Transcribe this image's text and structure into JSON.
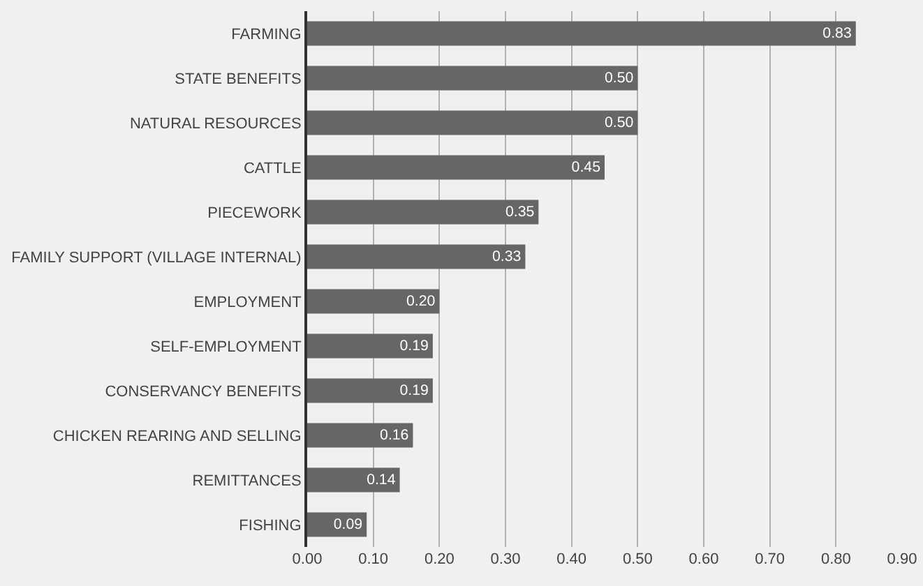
{
  "chart_data": {
    "type": "bar",
    "orientation": "horizontal",
    "categories": [
      "FARMING",
      "STATE BENEFITS",
      "NATURAL RESOURCES",
      "CATTLE",
      "PIECEWORK",
      "FAMILY SUPPORT (VILLAGE INTERNAL)",
      "EMPLOYMENT",
      "SELF-EMPLOYMENT",
      "CONSERVANCY BENEFITS",
      "CHICKEN REARING AND SELLING",
      "REMITTANCES",
      "FISHING"
    ],
    "values": [
      0.83,
      0.5,
      0.5,
      0.45,
      0.35,
      0.33,
      0.2,
      0.19,
      0.19,
      0.16,
      0.14,
      0.09
    ],
    "value_labels": [
      "0.83",
      "0.50",
      "0.50",
      "0.45",
      "0.35",
      "0.33",
      "0.20",
      "0.19",
      "0.19",
      "0.16",
      "0.14",
      "0.09"
    ],
    "color": "#666666",
    "grid": "x",
    "xlim": [
      0,
      0.9
    ],
    "xticks": [
      {
        "value": 0,
        "label": "0.00"
      },
      {
        "value": 0.1,
        "label": "0.10"
      },
      {
        "value": 0.2,
        "label": "0.20"
      },
      {
        "value": 0.3,
        "label": "0.30"
      },
      {
        "value": 0.4,
        "label": "0.40"
      },
      {
        "value": 0.5,
        "label": "0.50"
      },
      {
        "value": 0.6,
        "label": "0.60"
      },
      {
        "value": 0.7,
        "label": "0.70"
      },
      {
        "value": 0.8,
        "label": "0.80"
      },
      {
        "value": 0.9,
        "label": "0.90"
      }
    ]
  }
}
